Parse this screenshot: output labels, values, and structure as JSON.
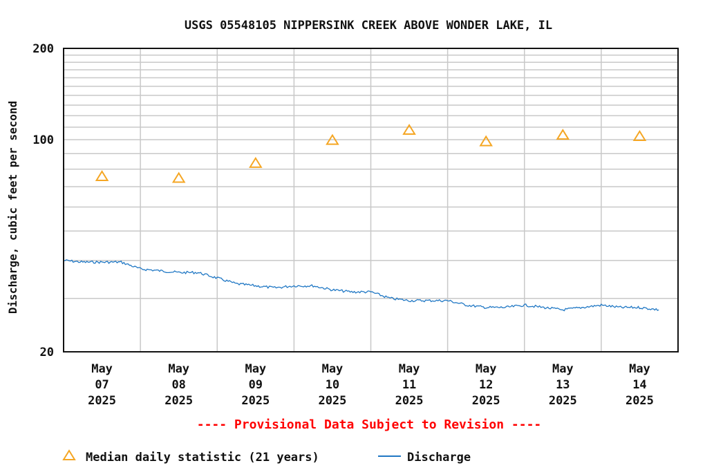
{
  "chart_data": {
    "type": "line",
    "title": "USGS 05548105 NIPPERSINK CREEK ABOVE WONDER LAKE, IL",
    "ylabel": "Discharge, cubic feet per second",
    "xlabel": "",
    "y_scale": "log",
    "ylim": [
      20,
      200
    ],
    "y_ticks": [
      "200",
      "100",
      "20"
    ],
    "x_ticks": [
      {
        "month": "May",
        "day": "07",
        "year": "2025"
      },
      {
        "month": "May",
        "day": "08",
        "year": "2025"
      },
      {
        "month": "May",
        "day": "09",
        "year": "2025"
      },
      {
        "month": "May",
        "day": "10",
        "year": "2025"
      },
      {
        "month": "May",
        "day": "11",
        "year": "2025"
      },
      {
        "month": "May",
        "day": "12",
        "year": "2025"
      },
      {
        "month": "May",
        "day": "13",
        "year": "2025"
      },
      {
        "month": "May",
        "day": "14",
        "year": "2025"
      }
    ],
    "xlim": [
      "2025-05-06T12:00",
      "2025-05-14T12:00"
    ],
    "grid": true,
    "series": [
      {
        "name": "Median daily statistic (21 years)",
        "kind": "scatter",
        "marker": "triangle",
        "color": "#f5a623",
        "x": [
          "2025-05-07T00:00",
          "2025-05-08T00:00",
          "2025-05-09T00:00",
          "2025-05-10T00:00",
          "2025-05-11T00:00",
          "2025-05-12T00:00",
          "2025-05-13T00:00",
          "2025-05-14T00:00"
        ],
        "y": [
          76,
          75,
          84,
          100,
          108,
          99,
          104,
          103
        ]
      },
      {
        "name": "Discharge",
        "kind": "line",
        "color": "#1f77c4",
        "x": [
          "2025-05-06T12:00",
          "2025-05-06T18:00",
          "2025-05-07T00:00",
          "2025-05-07T06:00",
          "2025-05-07T12:00",
          "2025-05-07T18:00",
          "2025-05-08T00:00",
          "2025-05-08T06:00",
          "2025-05-08T12:00",
          "2025-05-08T18:00",
          "2025-05-09T00:00",
          "2025-05-09T06:00",
          "2025-05-09T12:00",
          "2025-05-09T18:00",
          "2025-05-10T00:00",
          "2025-05-10T06:00",
          "2025-05-10T12:00",
          "2025-05-10T18:00",
          "2025-05-11T00:00",
          "2025-05-11T06:00",
          "2025-05-11T12:00",
          "2025-05-11T18:00",
          "2025-05-12T00:00",
          "2025-05-12T06:00",
          "2025-05-12T12:00",
          "2025-05-12T18:00",
          "2025-05-13T00:00",
          "2025-05-13T06:00",
          "2025-05-13T12:00",
          "2025-05-13T18:00",
          "2025-05-14T00:00",
          "2025-05-14T06:00"
        ],
        "y": [
          40,
          39.5,
          39.5,
          39.5,
          37.5,
          37.0,
          36.5,
          36.5,
          35.0,
          33.5,
          33.0,
          32.5,
          33.0,
          33.0,
          32.0,
          31.5,
          31.5,
          30.0,
          29.5,
          29.5,
          29.5,
          28.5,
          28.0,
          28.0,
          28.5,
          28.0,
          27.5,
          28.0,
          28.5,
          28.0,
          28.0,
          27.5
        ]
      }
    ],
    "legend_position": "bottom-left",
    "note": "---- Provisional Data Subject to Revision ----"
  }
}
